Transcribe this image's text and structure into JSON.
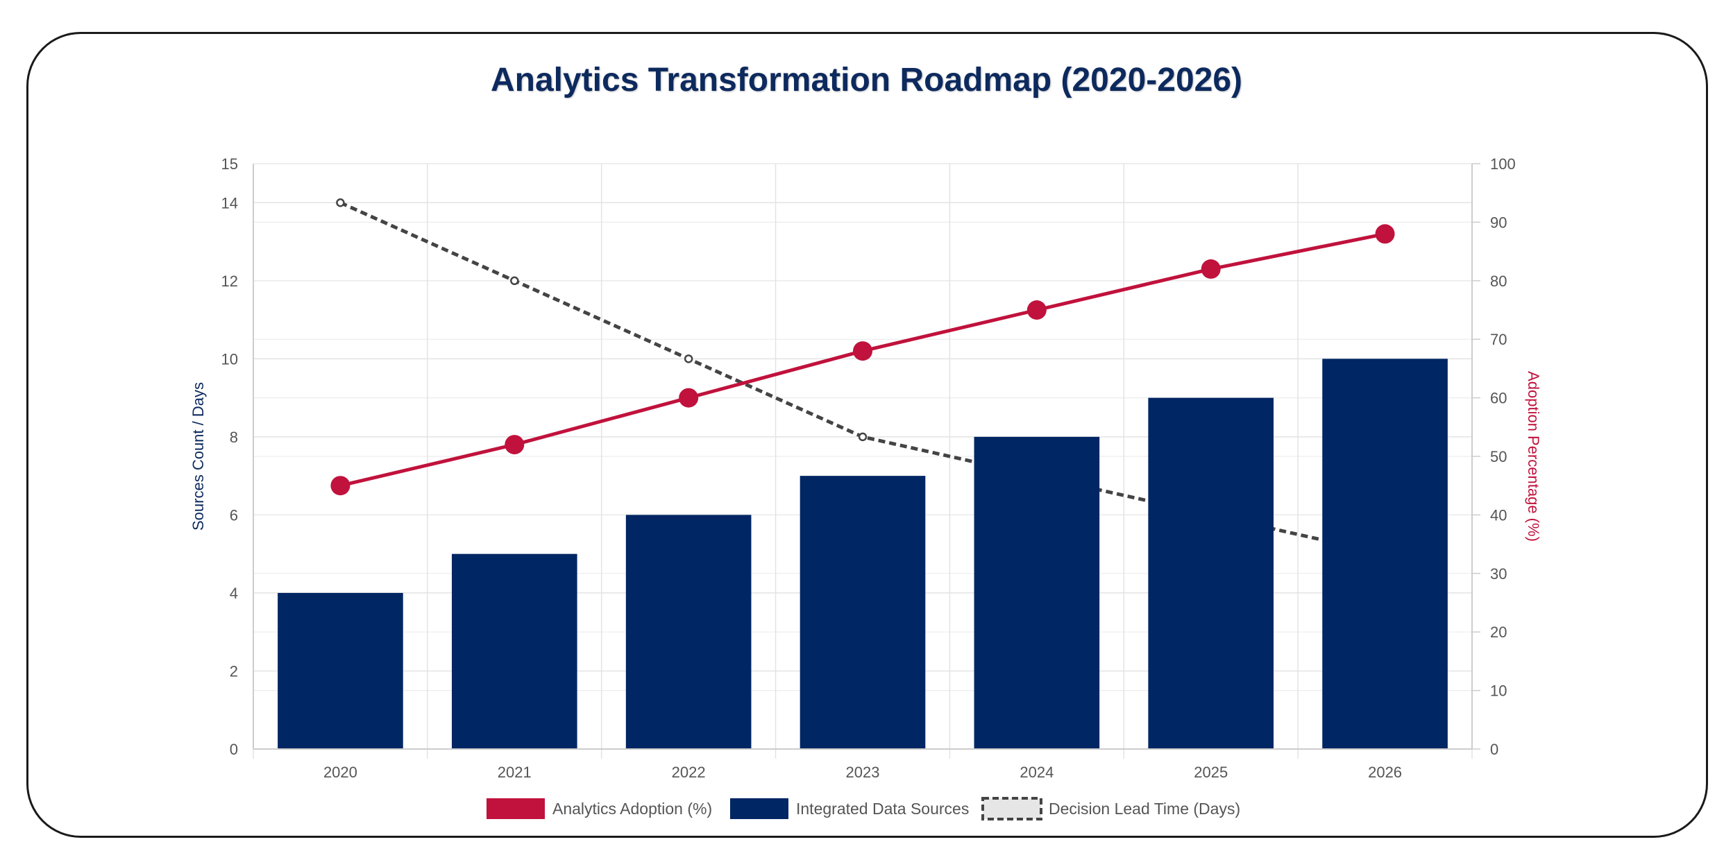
{
  "chart_data": {
    "type": "bar",
    "title": "Analytics Transformation Roadmap (2020-2026)",
    "categories": [
      "2020",
      "2021",
      "2022",
      "2023",
      "2024",
      "2025",
      "2026"
    ],
    "series": [
      {
        "name": "Analytics Adoption (%)",
        "type": "line",
        "axis": "right",
        "color": "#c0123c",
        "values": [
          45,
          52,
          60,
          68,
          75,
          82,
          88
        ]
      },
      {
        "name": "Integrated Data Sources",
        "type": "bar",
        "axis": "left",
        "color": "#002664",
        "values": [
          4,
          5,
          6,
          7,
          8,
          9,
          10
        ]
      },
      {
        "name": "Decision Lead Time (Days)",
        "type": "line",
        "style": "dashed",
        "axis": "left",
        "color": "#444444",
        "values": [
          14,
          12,
          10,
          8,
          7,
          6,
          5
        ]
      }
    ],
    "ylabel": "Sources Count / Days",
    "y2label": "Adoption Percentage (%)",
    "ylim": [
      0,
      15
    ],
    "y2lim": [
      0,
      100
    ],
    "yticks": [
      "0",
      "2",
      "4",
      "6",
      "8",
      "10",
      "12",
      "14",
      "15"
    ],
    "y2ticks": [
      "0",
      "10",
      "20",
      "30",
      "40",
      "50",
      "60",
      "70",
      "80",
      "90",
      "100"
    ],
    "grid": true,
    "legend": "bottom"
  }
}
